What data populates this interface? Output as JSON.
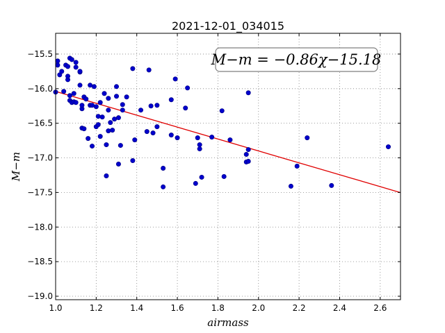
{
  "chart_data": {
    "type": "scatter",
    "title": "2021-12-01_034015",
    "xlabel": "airmass",
    "ylabel": "M−m",
    "xlim": [
      1.0,
      2.7
    ],
    "ylim": [
      -19.05,
      -15.2
    ],
    "x_ticks": [
      1.0,
      1.2,
      1.4,
      1.6,
      1.8,
      2.0,
      2.2,
      2.4,
      2.6
    ],
    "x_tick_labels": [
      "1.0",
      "1.2",
      "1.4",
      "1.6",
      "1.8",
      "2.0",
      "2.2",
      "2.4",
      "2.6"
    ],
    "y_ticks": [
      -15.5,
      -16.0,
      -16.5,
      -17.0,
      -17.5,
      -18.0,
      -18.5,
      -19.0
    ],
    "y_tick_labels": [
      "−15.5",
      "−16.0",
      "−16.5",
      "−17.0",
      "−17.5",
      "−18.0",
      "−18.5",
      "−19.0"
    ],
    "grid": true,
    "annotation": "M−m = −0.86χ−15.18",
    "marker_color": "#0000cc",
    "marker_edge": "#00007f",
    "fit_color": "#e00000",
    "fit_line": {
      "slope": -0.86,
      "intercept": -15.18
    },
    "points": [
      [
        1.0,
        -16.05
      ],
      [
        1.01,
        -15.6
      ],
      [
        1.01,
        -15.66
      ],
      [
        1.02,
        -15.8
      ],
      [
        1.03,
        -15.75
      ],
      [
        1.04,
        -16.04
      ],
      [
        1.05,
        -15.66
      ],
      [
        1.06,
        -15.87
      ],
      [
        1.06,
        -15.82
      ],
      [
        1.06,
        -15.68
      ],
      [
        1.07,
        -15.56
      ],
      [
        1.07,
        -16.1
      ],
      [
        1.07,
        -16.17
      ],
      [
        1.08,
        -15.58
      ],
      [
        1.08,
        -16.2
      ],
      [
        1.09,
        -16.07
      ],
      [
        1.09,
        -16.19
      ],
      [
        1.1,
        -16.2
      ],
      [
        1.1,
        -15.62
      ],
      [
        1.1,
        -15.69
      ],
      [
        1.12,
        -15.95
      ],
      [
        1.12,
        -15.76
      ],
      [
        1.12,
        -15.75
      ],
      [
        1.13,
        -16.29
      ],
      [
        1.13,
        -16.24
      ],
      [
        1.13,
        -16.57
      ],
      [
        1.14,
        -16.12
      ],
      [
        1.14,
        -16.58
      ],
      [
        1.15,
        -16.15
      ],
      [
        1.16,
        -16.72
      ],
      [
        1.17,
        -15.95
      ],
      [
        1.17,
        -16.24
      ],
      [
        1.18,
        -16.83
      ],
      [
        1.18,
        -16.24
      ],
      [
        1.19,
        -15.97
      ],
      [
        1.2,
        -16.55
      ],
      [
        1.2,
        -16.26
      ],
      [
        1.21,
        -16.4
      ],
      [
        1.21,
        -16.52
      ],
      [
        1.22,
        -16.2
      ],
      [
        1.22,
        -16.69
      ],
      [
        1.23,
        -16.41
      ],
      [
        1.24,
        -16.07
      ],
      [
        1.25,
        -16.81
      ],
      [
        1.25,
        -17.26
      ],
      [
        1.26,
        -16.14
      ],
      [
        1.26,
        -16.31
      ],
      [
        1.26,
        -16.61
      ],
      [
        1.27,
        -16.49
      ],
      [
        1.28,
        -16.6
      ],
      [
        1.29,
        -16.44
      ],
      [
        1.3,
        -15.97
      ],
      [
        1.3,
        -16.11
      ],
      [
        1.31,
        -17.09
      ],
      [
        1.31,
        -16.42
      ],
      [
        1.32,
        -16.82
      ],
      [
        1.33,
        -16.31
      ],
      [
        1.33,
        -16.23
      ],
      [
        1.35,
        -16.12
      ],
      [
        1.38,
        -15.71
      ],
      [
        1.38,
        -17.04
      ],
      [
        1.39,
        -16.74
      ],
      [
        1.42,
        -16.31
      ],
      [
        1.45,
        -16.62
      ],
      [
        1.46,
        -15.73
      ],
      [
        1.47,
        -16.25
      ],
      [
        1.48,
        -16.64
      ],
      [
        1.5,
        -16.55
      ],
      [
        1.5,
        -16.24
      ],
      [
        1.53,
        -17.42
      ],
      [
        1.53,
        -17.15
      ],
      [
        1.57,
        -16.16
      ],
      [
        1.57,
        -16.67
      ],
      [
        1.59,
        -15.86
      ],
      [
        1.6,
        -16.71
      ],
      [
        1.64,
        -16.28
      ],
      [
        1.65,
        -15.99
      ],
      [
        1.69,
        -17.37
      ],
      [
        1.7,
        -16.71
      ],
      [
        1.71,
        -16.87
      ],
      [
        1.71,
        -16.81
      ],
      [
        1.72,
        -17.28
      ],
      [
        1.77,
        -16.7
      ],
      [
        1.82,
        -16.32
      ],
      [
        1.83,
        -17.27
      ],
      [
        1.86,
        -16.74
      ],
      [
        1.94,
        -17.06
      ],
      [
        1.94,
        -16.95
      ],
      [
        1.95,
        -16.88
      ],
      [
        1.95,
        -16.06
      ],
      [
        1.95,
        -17.05
      ],
      [
        2.16,
        -17.41
      ],
      [
        2.19,
        -17.12
      ],
      [
        2.24,
        -16.71
      ],
      [
        2.36,
        -17.4
      ],
      [
        2.64,
        -16.84
      ]
    ]
  }
}
